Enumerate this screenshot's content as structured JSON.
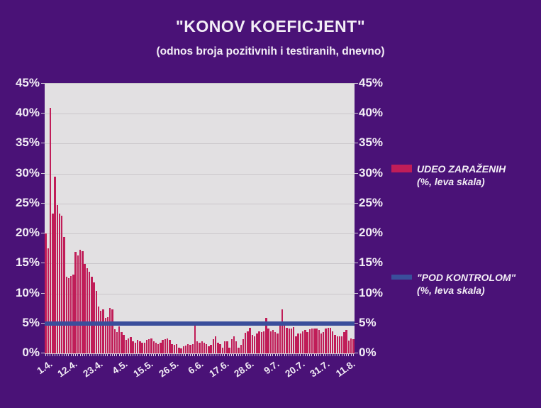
{
  "page": {
    "background_color": "#4a1277"
  },
  "header": {
    "title": "\"KONOV KOEFICJENT\"",
    "subtitle": "(odnos broja pozitivnih i testiranih, dnevno)"
  },
  "legend": {
    "items": [
      {
        "label": "UDEO ZARAŽENIH",
        "sublabel": "(%, leva skala)",
        "color": "#c01d58",
        "swatch": "bar"
      },
      {
        "label": "\"POD KONTROLOM\"",
        "sublabel": "(%, leva skala)",
        "color": "#3a4e9b",
        "swatch": "line"
      }
    ]
  },
  "chart_data": {
    "type": "bar",
    "title": "\"KONOV KOEFICJENT\"",
    "subtitle": "(odnos broja pozitivnih i testiranih, dnevno)",
    "grid": true,
    "legend_position": "right",
    "plot_background": "#e2e0e2",
    "y_axis": {
      "min": 0,
      "max": 45,
      "tick_step": 5,
      "tick_labels": [
        "0%",
        "5%",
        "10%",
        "15%",
        "20%",
        "25%",
        "30%",
        "35%",
        "40%",
        "45%"
      ],
      "shown_on": "both sides, % of positive among tested"
    },
    "x_axis": {
      "tick_labels": [
        "1.4.",
        "12.4.",
        "23.4.",
        "4.5.",
        "15.5.",
        "26.5.",
        "6.6.",
        "17.6.",
        "28.6.",
        "9.7.",
        "20.7.",
        "31.7.",
        "11.8."
      ],
      "label_every_n_bars": 11,
      "unit": "date (day.month.)"
    },
    "series": [
      {
        "name": "UDEO ZARAŽENIH (%, leva skala)",
        "type": "bar",
        "color": "#c01d58",
        "values": [
          20.0,
          17.5,
          41.0,
          23.3,
          29.5,
          24.8,
          23.3,
          23.0,
          19.4,
          12.8,
          12.5,
          12.9,
          13.2,
          16.9,
          16.4,
          17.3,
          17.0,
          14.9,
          14.2,
          13.6,
          12.8,
          11.8,
          10.4,
          7.8,
          7.1,
          7.3,
          5.9,
          6.1,
          7.6,
          7.3,
          4.0,
          3.6,
          4.5,
          3.6,
          3.1,
          2.2,
          2.5,
          2.7,
          2.0,
          1.8,
          2.2,
          2.0,
          1.8,
          1.8,
          2.2,
          2.4,
          2.5,
          2.0,
          1.8,
          1.6,
          1.8,
          2.2,
          2.4,
          2.5,
          2.2,
          1.5,
          1.4,
          1.5,
          1.0,
          0.8,
          1.2,
          1.3,
          1.6,
          1.4,
          1.6,
          4.8,
          2.0,
          1.8,
          2.0,
          1.8,
          1.6,
          1.2,
          1.4,
          2.4,
          2.9,
          1.8,
          1.6,
          1.0,
          2.0,
          2.0,
          0.9,
          2.4,
          2.8,
          2.0,
          1.0,
          1.4,
          2.4,
          3.4,
          3.7,
          4.3,
          3.1,
          2.8,
          3.3,
          3.7,
          3.6,
          3.7,
          5.9,
          4.1,
          3.7,
          3.9,
          3.6,
          3.3,
          5.1,
          7.3,
          4.7,
          4.3,
          4.1,
          4.1,
          4.4,
          2.9,
          3.3,
          3.3,
          3.7,
          3.9,
          3.6,
          4.0,
          4.1,
          4.1,
          4.1,
          3.9,
          3.3,
          3.5,
          4.1,
          4.3,
          4.3,
          3.7,
          3.1,
          2.9,
          2.9,
          2.8,
          3.5,
          3.9,
          2.1,
          2.5,
          2.4
        ]
      },
      {
        "name": "\"POD KONTROLOM\" (%, leva skala)",
        "type": "line",
        "color": "#3a4e9b",
        "constant_value": 5
      }
    ]
  }
}
